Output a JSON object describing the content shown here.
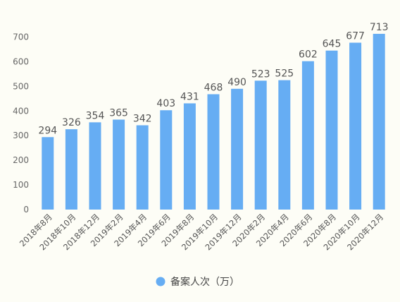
{
  "chart_data": {
    "type": "bar",
    "categories": [
      "2018年8月",
      "2018年10月",
      "2018年12月",
      "2019年2月",
      "2019年4月",
      "2019年6月",
      "2019年8月",
      "2019年10月",
      "2019年12月",
      "2020年2月",
      "2020年4月",
      "2020年6月",
      "2020年8月",
      "2020年10月",
      "2020年12月"
    ],
    "series": [
      {
        "name": "备案人次（万）",
        "values": [
          294,
          326,
          354,
          365,
          342,
          403,
          431,
          468,
          490,
          523,
          525,
          602,
          645,
          677,
          713
        ],
        "color": "#66adf3"
      }
    ],
    "ylim": [
      0,
      700
    ],
    "yticks": [
      0,
      100,
      200,
      300,
      400,
      500,
      600,
      700
    ],
    "data_labels": true,
    "grid": false,
    "legend": "bottom-center",
    "title": "",
    "xlabel": "",
    "ylabel": ""
  }
}
